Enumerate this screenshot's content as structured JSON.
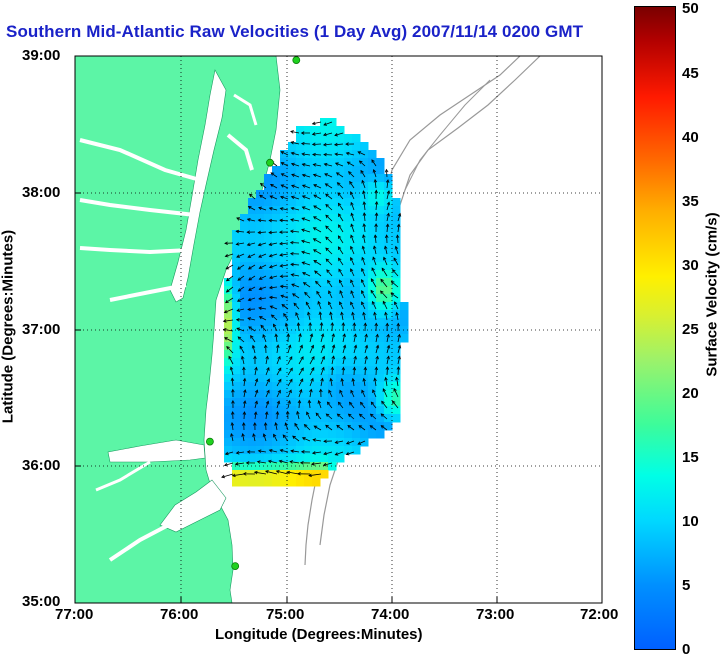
{
  "title": "Southern Mid-Atlantic Raw Velocities (1 Day Avg) 2007/11/14 0200 GMT",
  "chart_data": {
    "type": "map-vector-field",
    "title": "Southern Mid-Atlantic Raw Velocities (1 Day Avg) 2007/11/14 0200 GMT",
    "xlabel": "Longitude (Degrees:Minutes)",
    "ylabel": "Latitude (Degrees:Minutes)",
    "x_ticks": [
      "77:00",
      "76:00",
      "75:00",
      "74:00",
      "73:00",
      "72:00"
    ],
    "y_ticks": [
      "39:00",
      "38:00",
      "37:00",
      "36:00",
      "35:00"
    ],
    "xlim": [
      -77,
      -72
    ],
    "ylim": [
      35,
      39
    ],
    "grid": "dotted",
    "colorbar": {
      "label": "Surface Velocity (cm/s)",
      "ticks": [
        "0",
        "5",
        "10",
        "15",
        "20",
        "25",
        "30",
        "35",
        "40",
        "45",
        "50"
      ],
      "range": [
        0,
        50
      ]
    },
    "colors": {
      "land": "#5cf5a6",
      "title": "#1a22c8",
      "station": "#1fd11f"
    },
    "stations": [
      {
        "lon": -74.9,
        "lat": 38.97
      },
      {
        "lon": -75.15,
        "lat": 38.22
      },
      {
        "lon": -75.72,
        "lat": 36.18
      },
      {
        "lon": -75.48,
        "lat": 35.27
      }
    ]
  }
}
